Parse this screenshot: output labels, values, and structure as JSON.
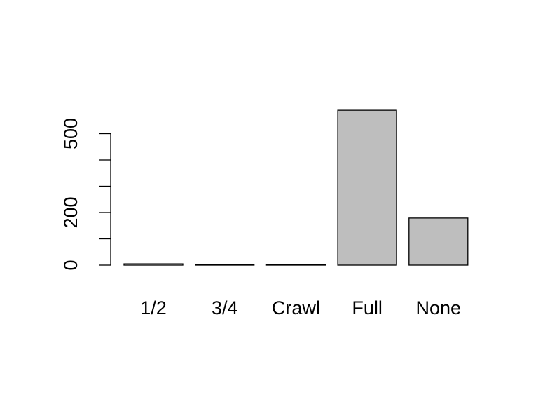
{
  "chart_data": {
    "type": "bar",
    "categories": [
      "1/2",
      "3/4",
      "Crawl",
      "Full",
      "None"
    ],
    "values": [
      5,
      1,
      1,
      589,
      179
    ],
    "title": "",
    "xlabel": "",
    "ylabel": "",
    "ylim": [
      0,
      589
    ],
    "yticks": [
      0,
      100,
      200,
      300,
      400,
      500
    ],
    "ytick_labels": [
      "0",
      "",
      "200",
      "",
      "",
      "500"
    ],
    "bar_fill": "#bebebe",
    "bar_stroke": "#000000",
    "grid": false,
    "legend": "none"
  }
}
